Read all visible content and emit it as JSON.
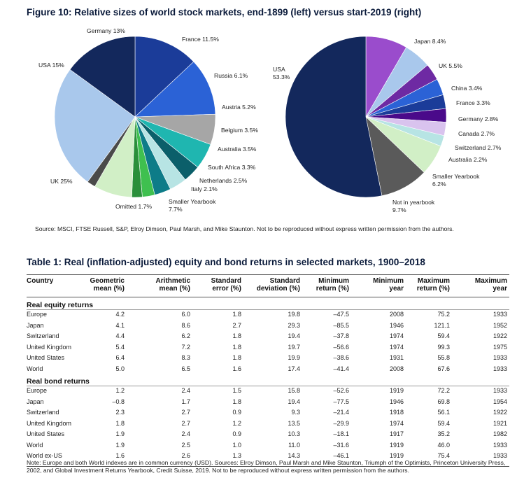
{
  "figure": {
    "title": "Figure 10: Relative sizes of world stock markets, end-1899 (left) versus start-2019 (right)",
    "source": "Source: MSCI, FTSE Russell, S&P, Elroy Dimson, Paul Marsh, and Mike Staunton. Not to be reproduced without express written permission from the authors."
  },
  "chart_data": [
    {
      "type": "pie",
      "slices": [
        {
          "label": "Germany 13%",
          "value": 13,
          "color": "#1b3c99"
        },
        {
          "label": "France 11.5%",
          "value": 11.5,
          "color": "#2b62d6"
        },
        {
          "label": "Russia 6.1%",
          "value": 6.1,
          "color": "#a6a6a6"
        },
        {
          "label": "Austria 5.2%",
          "value": 5.2,
          "color": "#1fb6b0"
        },
        {
          "label": "Belgium 3.5%",
          "value": 3.5,
          "color": "#0b5f6a"
        },
        {
          "label": "Australia 3.5%",
          "value": 3.5,
          "color": "#b7e4e4"
        },
        {
          "label": "South Africa 3.3%",
          "value": 3.3,
          "color": "#0d7c88"
        },
        {
          "label": "Netherlands 2.5%",
          "value": 2.5,
          "color": "#3fc04f"
        },
        {
          "label": "Italy 2.1%",
          "value": 2.1,
          "color": "#2a8f3a"
        },
        {
          "label": "Smaller Yearbook 7.7%",
          "value": 7.7,
          "color": "#d1efc6"
        },
        {
          "label": "Omitted 1.7%",
          "value": 1.7,
          "color": "#4a4a4a"
        },
        {
          "label": "UK 25%",
          "value": 25,
          "color": "#a9c8ec"
        },
        {
          "label": "USA 15%",
          "value": 15,
          "color": "#13285c"
        }
      ]
    },
    {
      "type": "pie",
      "slices": [
        {
          "label": "Japan 8.4%",
          "value": 8.4,
          "color": "#9a4ccc"
        },
        {
          "label": "UK 5.5%",
          "value": 5.5,
          "color": "#a9c8ec"
        },
        {
          "label": "China 3.4%",
          "value": 3.4,
          "color": "#6e2aa3"
        },
        {
          "label": "France 3.3%",
          "value": 3.3,
          "color": "#2b62d6"
        },
        {
          "label": "Germany 2.8%",
          "value": 2.8,
          "color": "#1b3c99"
        },
        {
          "label": "Canada 2.7%",
          "value": 2.7,
          "color": "#4a0a8a"
        },
        {
          "label": "Switzerland 2.7%",
          "value": 2.7,
          "color": "#d9c3ee"
        },
        {
          "label": "Australia 2.2%",
          "value": 2.2,
          "color": "#b7e4e4"
        },
        {
          "label": "Smaller Yearbook 6.2%",
          "value": 6.2,
          "color": "#d1efc6"
        },
        {
          "label": "Not in yearbook 9.7%",
          "value": 9.7,
          "color": "#5a5a5a"
        },
        {
          "label": "USA 53.3%",
          "value": 53.3,
          "color": "#13285c"
        }
      ]
    },
    {
      "type": "table",
      "title": "Table 1: Real (inflation-adjusted) equity and bond returns in selected markets, 1900–2018",
      "columns": [
        [
          "Country",
          ""
        ],
        [
          "Geometric",
          "mean (%)"
        ],
        [
          "Arithmetic",
          "mean (%)"
        ],
        [
          "Standard",
          "error (%)"
        ],
        [
          "Standard",
          "deviation (%)"
        ],
        [
          "Minimum",
          "return (%)"
        ],
        [
          "Minimum",
          "year"
        ],
        [
          "Maximum",
          "return (%)"
        ],
        [
          "Maximum",
          "year"
        ]
      ],
      "sections": [
        {
          "title": "Real equity returns",
          "rows": [
            [
              "Europe",
              "4.2",
              "6.0",
              "1.8",
              "19.8",
              "–47.5",
              "2008",
              "75.2",
              "1933"
            ],
            [
              "Japan",
              "4.1",
              "8.6",
              "2.7",
              "29.3",
              "–85.5",
              "1946",
              "121.1",
              "1952"
            ],
            [
              "Switzerland",
              "4.4",
              "6.2",
              "1.8",
              "19.4",
              "–37.8",
              "1974",
              "59.4",
              "1922"
            ],
            [
              "United Kingdom",
              "5.4",
              "7.2",
              "1.8",
              "19.7",
              "–56.6",
              "1974",
              "99.3",
              "1975"
            ],
            [
              "United States",
              "6.4",
              "8.3",
              "1.8",
              "19.9",
              "–38.6",
              "1931",
              "55.8",
              "1933"
            ],
            [
              "World",
              "5.0",
              "6.5",
              "1.6",
              "17.4",
              "–41.4",
              "2008",
              "67.6",
              "1933"
            ]
          ]
        },
        {
          "title": "Real bond returns",
          "rows": [
            [
              "Europe",
              "1.2",
              "2.4",
              "1.5",
              "15.8",
              "–52.6",
              "1919",
              "72.2",
              "1933"
            ],
            [
              "Japan",
              "–0.8",
              "1.7",
              "1.8",
              "19.4",
              "–77.5",
              "1946",
              "69.8",
              "1954"
            ],
            [
              "Switzerland",
              "2.3",
              "2.7",
              "0.9",
              "9.3",
              "–21.4",
              "1918",
              "56.1",
              "1922"
            ],
            [
              "United Kingdom",
              "1.8",
              "2.7",
              "1.2",
              "13.5",
              "–29.9",
              "1974",
              "59.4",
              "1921"
            ],
            [
              "United States",
              "1.9",
              "2.4",
              "0.9",
              "10.3",
              "–18.1",
              "1917",
              "35.2",
              "1982"
            ],
            [
              "World",
              "1.9",
              "2.5",
              "1.0",
              "11.0",
              "–31.6",
              "1919",
              "46.0",
              "1933"
            ],
            [
              "World ex-US",
              "1.6",
              "2.6",
              "1.3",
              "14.3",
              "–46.1",
              "1919",
              "75.4",
              "1933"
            ]
          ]
        }
      ],
      "note": "Note: Europe and both World indexes are in common currency (USD). Sources: Elroy Dimson, Paul Marsh and Mike Staunton, Triumph of the Optimists, Princeton University Press, 2002, and Global Investment Returns Yearbook, Credit Suisse, 2019. Not to be reproduced without express written permission from the authors."
    }
  ]
}
